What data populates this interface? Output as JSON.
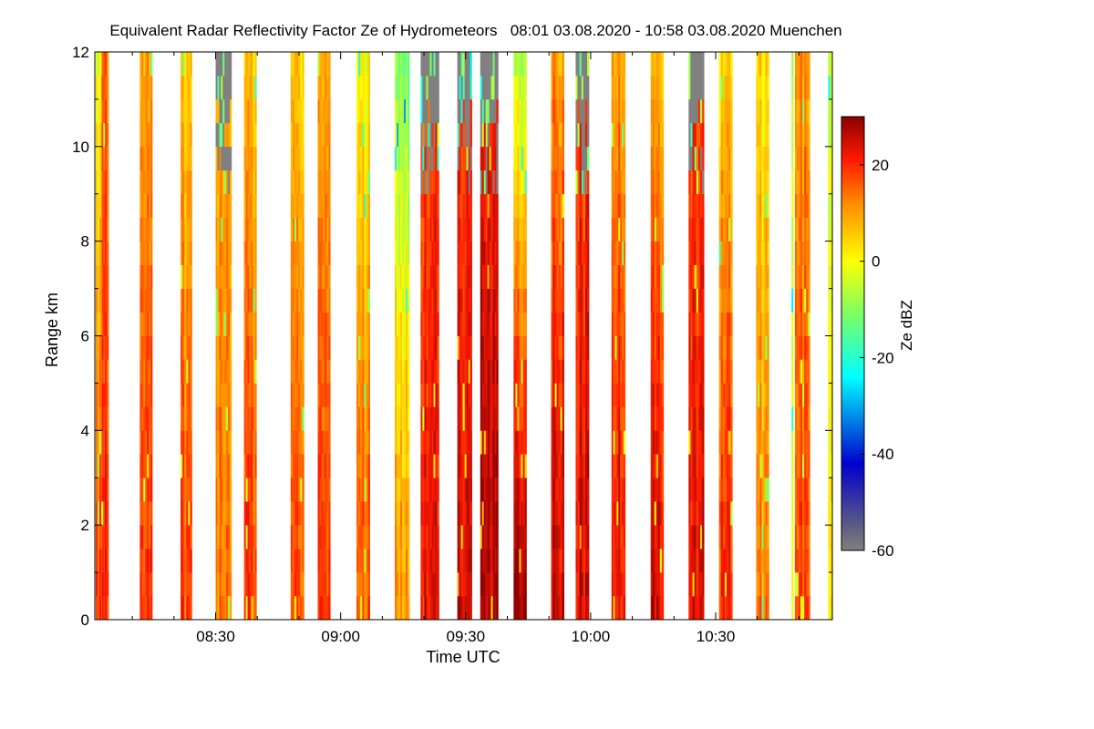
{
  "chart_data": {
    "type": "heatmap",
    "title": "Equivalent Radar Reflectivity Factor Ze of Hydrometeors   08:01 03.08.2020 - 10:58 03.08.2020 Muenchen",
    "xlabel": "Time UTC",
    "ylabel": "Range km",
    "x_range_minutes_utc": [
      481,
      658
    ],
    "x_ticks": [
      {
        "minute": 510,
        "label": "08:30"
      },
      {
        "minute": 540,
        "label": "09:00"
      },
      {
        "minute": 570,
        "label": "09:30"
      },
      {
        "minute": 600,
        "label": "10:00"
      },
      {
        "minute": 630,
        "label": "10:30"
      }
    ],
    "ylim": [
      0,
      12
    ],
    "y_ticks": [
      0,
      2,
      4,
      6,
      8,
      10,
      12
    ],
    "colorbar": {
      "label": "Ze dBZ",
      "range": [
        -60,
        30
      ],
      "ticks": [
        -60,
        -40,
        -20,
        0,
        20
      ],
      "colormap": [
        "#808080",
        "#0000cc",
        "#00ffff",
        "#ffff00",
        "#ff8c00",
        "#ff0000",
        "#8b0000"
      ]
    },
    "columns": [
      {
        "start": 481.2,
        "end": 482.5,
        "surface_dbz": 18,
        "top_dbz": -2,
        "texture": "streaky"
      },
      {
        "start": 482.6,
        "end": 484.3,
        "surface_dbz": 20,
        "top_dbz": 14,
        "texture": "streaky"
      },
      {
        "start": 491.8,
        "end": 494.8,
        "surface_dbz": 20,
        "top_dbz": 10,
        "texture": "streaky"
      },
      {
        "start": 501.6,
        "end": 504.3,
        "surface_dbz": 18,
        "top_dbz": 4,
        "texture": "streaky"
      },
      {
        "start": 510.0,
        "end": 513.8,
        "surface_dbz": 14,
        "top_dbz": -60,
        "texture": "gray-top"
      },
      {
        "start": 516.8,
        "end": 519.8,
        "surface_dbz": 18,
        "top_dbz": 4,
        "texture": "streaky"
      },
      {
        "start": 528.0,
        "end": 531.2,
        "surface_dbz": 18,
        "top_dbz": 6,
        "texture": "streaky"
      },
      {
        "start": 534.5,
        "end": 537.5,
        "surface_dbz": 18,
        "top_dbz": 8,
        "texture": "streaky"
      },
      {
        "start": 543.8,
        "end": 547.0,
        "surface_dbz": 16,
        "top_dbz": 0,
        "texture": "streaky"
      },
      {
        "start": 553.0,
        "end": 556.5,
        "surface_dbz": 15,
        "top_dbz": -8,
        "texture": "yellowish"
      },
      {
        "start": 559.2,
        "end": 563.6,
        "surface_dbz": 22,
        "top_dbz": -60,
        "texture": "gray-top"
      },
      {
        "start": 568.0,
        "end": 571.5,
        "surface_dbz": 25,
        "top_dbz": -60,
        "texture": "gray-top"
      },
      {
        "start": 573.5,
        "end": 577.8,
        "surface_dbz": 27,
        "top_dbz": -60,
        "texture": "gray-top"
      },
      {
        "start": 581.5,
        "end": 584.6,
        "surface_dbz": 29,
        "top_dbz": -8,
        "texture": "streaky"
      },
      {
        "start": 590.5,
        "end": 593.6,
        "surface_dbz": 26,
        "top_dbz": 10,
        "texture": "streaky"
      },
      {
        "start": 596.4,
        "end": 599.6,
        "surface_dbz": 24,
        "top_dbz": -60,
        "texture": "gray-top"
      },
      {
        "start": 605.0,
        "end": 608.3,
        "surface_dbz": 24,
        "top_dbz": 10,
        "texture": "streaky"
      },
      {
        "start": 614.4,
        "end": 617.5,
        "surface_dbz": 24,
        "top_dbz": 6,
        "texture": "streaky"
      },
      {
        "start": 623.5,
        "end": 627.2,
        "surface_dbz": 24,
        "top_dbz": -60,
        "texture": "gray-top"
      },
      {
        "start": 630.8,
        "end": 634.0,
        "surface_dbz": 20,
        "top_dbz": 4,
        "texture": "streaky"
      },
      {
        "start": 639.7,
        "end": 642.8,
        "surface_dbz": 12,
        "top_dbz": 2,
        "texture": "streaky"
      },
      {
        "start": 648.2,
        "end": 648.6,
        "surface_dbz": 6,
        "top_dbz": 0,
        "texture": "yellowish"
      },
      {
        "start": 649.0,
        "end": 652.6,
        "surface_dbz": 18,
        "top_dbz": 10,
        "texture": "streaky"
      },
      {
        "start": 657.0,
        "end": 658.0,
        "surface_dbz": 6,
        "top_dbz": 0,
        "texture": "yellowish"
      }
    ]
  }
}
